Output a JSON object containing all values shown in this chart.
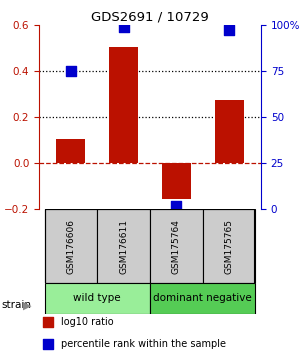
{
  "title": "GDS2691 / 10729",
  "samples": [
    "GSM176606",
    "GSM176611",
    "GSM175764",
    "GSM175765"
  ],
  "log10_ratio": [
    0.105,
    0.505,
    -0.155,
    0.275
  ],
  "percentile_rank": [
    75,
    99,
    2,
    97
  ],
  "ylim_left": [
    -0.2,
    0.6
  ],
  "ylim_right": [
    0,
    100
  ],
  "yticks_left": [
    -0.2,
    0.0,
    0.2,
    0.4,
    0.6
  ],
  "yticks_right": [
    0,
    25,
    50,
    75,
    100
  ],
  "ytick_labels_right": [
    "0",
    "25",
    "50",
    "75",
    "100%"
  ],
  "hlines_dotted": [
    0.2,
    0.4
  ],
  "hline_dashed": 0.0,
  "bar_color": "#bb1100",
  "point_color": "#0000cc",
  "sample_box_color": "#cccccc",
  "groups": [
    {
      "label": "wild type",
      "samples": [
        0,
        1
      ],
      "color": "#99ee99"
    },
    {
      "label": "dominant negative",
      "samples": [
        2,
        3
      ],
      "color": "#55cc55"
    }
  ],
  "strain_label": "strain",
  "legend_items": [
    {
      "color": "#bb1100",
      "label": "log10 ratio"
    },
    {
      "color": "#0000cc",
      "label": "percentile rank within the sample"
    }
  ],
  "bar_width": 0.55,
  "point_size": 45,
  "background_color": "#ffffff"
}
